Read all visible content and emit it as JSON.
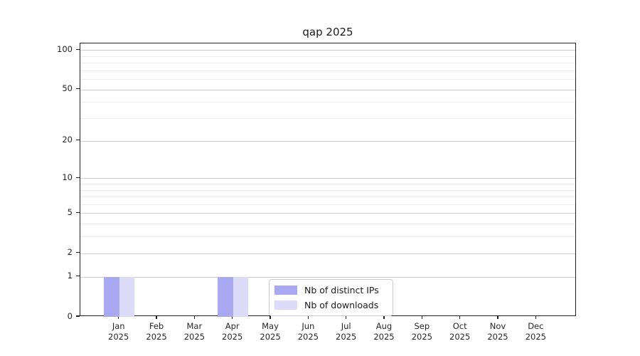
{
  "chart_data": {
    "type": "bar",
    "title": "qap 2025",
    "x_year_label": "2025",
    "categories": [
      "Jan",
      "Feb",
      "Mar",
      "Apr",
      "May",
      "Jun",
      "Jul",
      "Aug",
      "Sep",
      "Oct",
      "Nov",
      "Dec"
    ],
    "series": [
      {
        "name": "Nb of distinct IPs",
        "color": "#a9a9f1",
        "values": [
          1,
          0,
          0,
          1,
          0,
          0,
          0,
          0,
          0,
          0,
          0,
          0
        ]
      },
      {
        "name": "Nb of downloads",
        "color": "#dcdcf8",
        "values": [
          1,
          0,
          0,
          1,
          0,
          0,
          0,
          0,
          0,
          0,
          0,
          0
        ]
      }
    ],
    "yscale": "log1p",
    "ylabel": "",
    "xlabel": "",
    "y_ticks": [
      0,
      1,
      2,
      5,
      10,
      20,
      50,
      100
    ],
    "y_minor_gridlines": [
      3,
      4,
      6,
      7,
      8,
      9,
      30,
      40,
      60,
      70,
      80,
      90
    ],
    "ylim": [
      0,
      112
    ],
    "grid": "horizontal",
    "legend_position": "lower-center-inside",
    "colors": {
      "major_grid": "#cdcdcd",
      "minor_grid": "#ececec",
      "spine": "#1f1f1f",
      "text": "#262626"
    }
  }
}
